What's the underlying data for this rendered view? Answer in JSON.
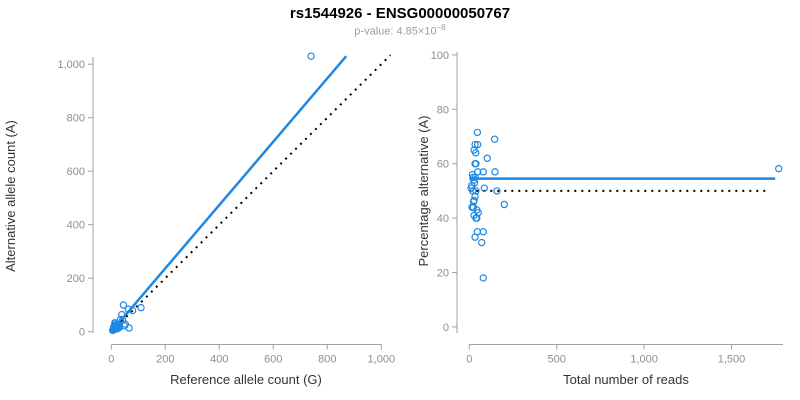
{
  "page": {
    "title": "rs1544926 - ENSG00000050767",
    "subtitle_prefix": "p-value: 4.85×10",
    "subtitle_exponent": "−8"
  },
  "colors": {
    "accent_blue": "#1E88E5",
    "dotted_black": "#000000",
    "axis_line": "#a0a0a0",
    "tick_label": "#8e8e8e",
    "axis_title": "#333333"
  },
  "chart_data": [
    {
      "id": "allele-counts-scatter",
      "type": "scatter",
      "title": "",
      "xlabel": "Reference allele count (G)",
      "ylabel": "Alternative allele count (A)",
      "xlim": [
        0,
        1000
      ],
      "ylim": [
        0,
        1000
      ],
      "grid": false,
      "legend": "none",
      "x_ticks": [
        0,
        200,
        400,
        600,
        800,
        1000
      ],
      "x_tick_labels": [
        "0",
        "200",
        "400",
        "600",
        "800",
        "1,000"
      ],
      "y_ticks": [
        0,
        200,
        400,
        600,
        800,
        1000
      ],
      "y_tick_labels": [
        "0",
        "200",
        "400",
        "600",
        "800",
        "1,000"
      ],
      "points": [
        [
          13,
          33
        ],
        [
          45,
          100
        ],
        [
          11,
          22
        ],
        [
          16,
          32
        ],
        [
          9,
          18
        ],
        [
          13,
          24
        ],
        [
          39,
          64
        ],
        [
          13,
          20
        ],
        [
          15,
          23
        ],
        [
          21,
          27
        ],
        [
          34,
          46
        ],
        [
          63,
          84
        ],
        [
          15,
          18
        ],
        [
          5,
          5
        ],
        [
          19,
          19
        ],
        [
          42,
          44
        ],
        [
          79,
          79
        ],
        [
          17,
          16
        ],
        [
          14,
          13
        ],
        [
          110,
          90
        ],
        [
          13,
          10
        ],
        [
          25,
          18
        ],
        [
          30,
          21
        ],
        [
          16,
          11
        ],
        [
          23,
          15
        ],
        [
          26,
          17
        ],
        [
          30,
          16
        ],
        [
          52,
          28
        ],
        [
          22,
          11
        ],
        [
          49,
          22
        ],
        [
          66,
          14
        ],
        [
          7,
          7
        ],
        [
          8,
          10
        ],
        [
          10,
          12
        ],
        [
          12,
          14
        ],
        [
          9,
          7
        ],
        [
          10,
          10
        ],
        [
          14,
          16
        ],
        [
          13,
          11
        ],
        [
          740,
          1030
        ]
      ],
      "lines": [
        {
          "name": "regression-line",
          "style": "solid",
          "x1": 0,
          "y1": 0,
          "x2": 870,
          "y2": 1030
        },
        {
          "name": "identity-line",
          "style": "dotted",
          "x1": 0,
          "y1": 0,
          "x2": 1034,
          "y2": 1034
        }
      ]
    },
    {
      "id": "percentage-alternative-scatter",
      "type": "scatter",
      "title": "",
      "xlabel": "Total number of reads",
      "ylabel": "Percentage alternative (A)",
      "xlim": [
        0,
        1800
      ],
      "ylim": [
        0,
        100
      ],
      "grid": false,
      "legend": "none",
      "x_ticks": [
        0,
        500,
        1000,
        1500
      ],
      "x_tick_labels": [
        "0",
        "500",
        "1,000",
        "1,500"
      ],
      "y_ticks": [
        0,
        20,
        40,
        60,
        80,
        100
      ],
      "y_tick_labels": [
        "0",
        "20",
        "40",
        "60",
        "80",
        "100"
      ],
      "points": [
        [
          46,
          71.5
        ],
        [
          145,
          69
        ],
        [
          33,
          67
        ],
        [
          48,
          67
        ],
        [
          27,
          65
        ],
        [
          37,
          64
        ],
        [
          103,
          62
        ],
        [
          33,
          60
        ],
        [
          38,
          60
        ],
        [
          48,
          57
        ],
        [
          80,
          57
        ],
        [
          147,
          57
        ],
        [
          33,
          55
        ],
        [
          10,
          51
        ],
        [
          38,
          50
        ],
        [
          86,
          51
        ],
        [
          158,
          50
        ],
        [
          33,
          48
        ],
        [
          27,
          46.5
        ],
        [
          200,
          45
        ],
        [
          23,
          44
        ],
        [
          43,
          43
        ],
        [
          51,
          42
        ],
        [
          27,
          41
        ],
        [
          38,
          40
        ],
        [
          43,
          40
        ],
        [
          46,
          35
        ],
        [
          80,
          35
        ],
        [
          33,
          33
        ],
        [
          71,
          31
        ],
        [
          80,
          18
        ],
        [
          14,
          52
        ],
        [
          18,
          56
        ],
        [
          22,
          55
        ],
        [
          26,
          54
        ],
        [
          16,
          44
        ],
        [
          20,
          50
        ],
        [
          30,
          53
        ],
        [
          24,
          46
        ],
        [
          1770,
          58.2
        ]
      ],
      "lines": [
        {
          "name": "mean-percentage-line",
          "style": "solid",
          "x1": 0,
          "y1": 54.5,
          "x2": 1750,
          "y2": 54.5
        },
        {
          "name": "null-50pct-line",
          "style": "dotted",
          "x1": 0,
          "y1": 50,
          "x2": 1710,
          "y2": 50
        }
      ]
    }
  ]
}
